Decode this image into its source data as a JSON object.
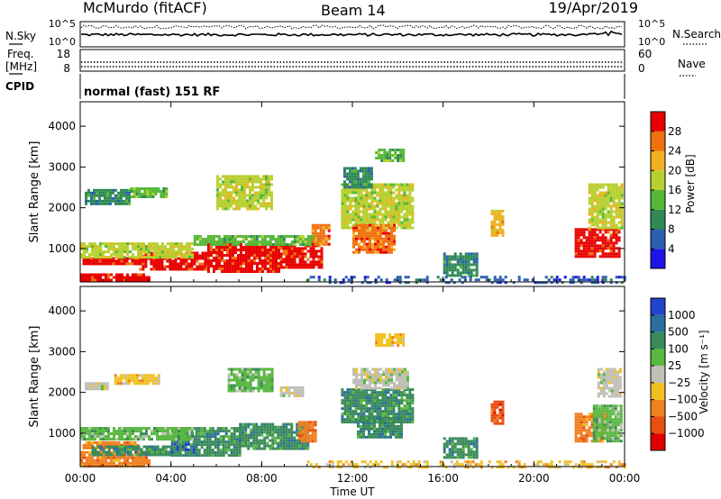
{
  "header": {
    "station": "McMurdo (fitACF)",
    "beam": "Beam 14",
    "date": "19/Apr/2019"
  },
  "noise_panel": {
    "left_label": "N.Sky",
    "right_label": "N.Search",
    "left_ticks": [
      "10^5",
      "10^0"
    ],
    "right_ticks": [
      "10^5",
      "10^0"
    ]
  },
  "freq_panel": {
    "left_label": "Freq.",
    "left_unit": "[MHz]",
    "left_ticks": [
      "18",
      "8"
    ],
    "right_label": "Nave",
    "right_ticks": [
      "60",
      "0"
    ]
  },
  "cpid_panel": {
    "label": "CPID",
    "text": "normal (fast) 151 RF"
  },
  "chart_data": [
    {
      "type": "heatmap",
      "quantity": "power",
      "ylabel": "Slant Range [km]",
      "ylim": [
        180,
        4600
      ],
      "yticks": [
        1000,
        2000,
        3000,
        4000
      ],
      "xlim": [
        0,
        24
      ],
      "xticks": [
        "00:00",
        "04:00",
        "08:00",
        "12:00",
        "16:00",
        "20:00",
        "00:00"
      ],
      "colorbar_label": "Power [dB]",
      "colorbar_ticks": [
        "4",
        "8",
        "12",
        "16",
        "20",
        "24",
        "28"
      ],
      "colorbar_colors": [
        "#1e14e6",
        "#2a5fb0",
        "#2f8a55",
        "#55b838",
        "#b8d030",
        "#f0b020",
        "#f07010",
        "#e80000"
      ],
      "regions": [
        {
          "t": [
            0.0,
            3.0
          ],
          "r": [
            200,
            390
          ],
          "level": 7
        },
        {
          "t": [
            0.1,
            2.6
          ],
          "r": [
            620,
            790
          ],
          "level": 7
        },
        {
          "t": [
            2.6,
            5.6
          ],
          "r": [
            500,
            920
          ],
          "level": 7
        },
        {
          "t": [
            5.6,
            8.8
          ],
          "r": [
            450,
            1130
          ],
          "level": 7
        },
        {
          "t": [
            8.8,
            10.6
          ],
          "r": [
            560,
            1100
          ],
          "level": 7
        },
        {
          "t": [
            0.0,
            5.0
          ],
          "r": [
            800,
            1150
          ],
          "level": 4
        },
        {
          "t": [
            5.0,
            10.6
          ],
          "r": [
            1120,
            1330
          ],
          "level": 3
        },
        {
          "t": [
            10.2,
            11.0
          ],
          "r": [
            1120,
            1600
          ],
          "level": 6
        },
        {
          "t": [
            0.2,
            2.2
          ],
          "r": [
            2120,
            2460
          ],
          "level": 2
        },
        {
          "t": [
            2.2,
            3.8
          ],
          "r": [
            2300,
            2500
          ],
          "level": 3
        },
        {
          "t": [
            6.0,
            8.5
          ],
          "r": [
            2000,
            2800
          ],
          "level": 4
        },
        {
          "t": [
            11.5,
            14.6
          ],
          "r": [
            1500,
            2600
          ],
          "level": 4
        },
        {
          "t": [
            12.0,
            13.8
          ],
          "r": [
            900,
            1600
          ],
          "level": 6
        },
        {
          "t": [
            11.6,
            12.8
          ],
          "r": [
            2500,
            3000
          ],
          "level": 2
        },
        {
          "t": [
            13.0,
            14.2
          ],
          "r": [
            3150,
            3450
          ],
          "level": 3
        },
        {
          "t": [
            18.1,
            18.6
          ],
          "r": [
            1350,
            1950
          ],
          "level": 5
        },
        {
          "t": [
            21.8,
            23.8
          ],
          "r": [
            800,
            1500
          ],
          "level": 7
        },
        {
          "t": [
            22.4,
            23.9
          ],
          "r": [
            1500,
            2600
          ],
          "level": 4
        },
        {
          "t": [
            16.0,
            17.5
          ],
          "r": [
            350,
            900
          ],
          "level": 2
        },
        {
          "t": [
            10.0,
            24.0
          ],
          "r": [
            190,
            330
          ],
          "level": 1
        }
      ]
    },
    {
      "type": "heatmap",
      "quantity": "velocity",
      "ylabel": "Slant Range [km]",
      "ylim": [
        180,
        4600
      ],
      "yticks": [
        1000,
        2000,
        3000,
        4000
      ],
      "xlabel": "Time UT",
      "xlim": [
        0,
        24
      ],
      "xticks": [
        "00:00",
        "04:00",
        "08:00",
        "12:00",
        "16:00",
        "20:00",
        "00:00"
      ],
      "colorbar_label": "Velocity [m s⁻¹]",
      "colorbar_ticks": [
        "1000",
        "500",
        "100",
        "25",
        "−25",
        "−100",
        "−500",
        "−1000"
      ],
      "colorbar_colors": [
        "#2244cc",
        "#2a6ea0",
        "#3a8a5a",
        "#58b840",
        "#c0c0b8",
        "#f0c020",
        "#f08020",
        "#e85010",
        "#e00000"
      ],
      "regions": [
        {
          "t": [
            0.0,
            3.0
          ],
          "r": [
            200,
            560
          ],
          "level": 6
        },
        {
          "t": [
            0.1,
            2.6
          ],
          "r": [
            620,
            800
          ],
          "level": 6
        },
        {
          "t": [
            0.5,
            4.0
          ],
          "r": [
            450,
            700
          ],
          "level": 2
        },
        {
          "t": [
            4.0,
            7.0
          ],
          "r": [
            450,
            1150
          ],
          "level": 2
        },
        {
          "t": [
            4.0,
            5.0
          ],
          "r": [
            520,
            760
          ],
          "level": 0
        },
        {
          "t": [
            7.0,
            10.0
          ],
          "r": [
            650,
            1250
          ],
          "level": 2
        },
        {
          "t": [
            9.6,
            10.4
          ],
          "r": [
            800,
            1300
          ],
          "level": 6
        },
        {
          "t": [
            0.0,
            5.0
          ],
          "r": [
            850,
            1150
          ],
          "level": 3
        },
        {
          "t": [
            0.2,
            1.2
          ],
          "r": [
            2100,
            2250
          ],
          "level": 4
        },
        {
          "t": [
            1.5,
            3.5
          ],
          "r": [
            2250,
            2450
          ],
          "level": 5
        },
        {
          "t": [
            6.5,
            8.5
          ],
          "r": [
            2050,
            2600
          ],
          "level": 3
        },
        {
          "t": [
            8.8,
            9.8
          ],
          "r": [
            1950,
            2150
          ],
          "level": 4
        },
        {
          "t": [
            11.5,
            14.6
          ],
          "r": [
            1300,
            2100
          ],
          "level": 2
        },
        {
          "t": [
            12.2,
            14.2
          ],
          "r": [
            900,
            1400
          ],
          "level": 2
        },
        {
          "t": [
            12.0,
            14.5
          ],
          "r": [
            2100,
            2600
          ],
          "level": 4
        },
        {
          "t": [
            13.0,
            14.2
          ],
          "r": [
            3150,
            3450
          ],
          "level": 5
        },
        {
          "t": [
            18.1,
            18.6
          ],
          "r": [
            1250,
            1800
          ],
          "level": 7
        },
        {
          "t": [
            21.8,
            23.2
          ],
          "r": [
            800,
            1500
          ],
          "level": 6
        },
        {
          "t": [
            22.6,
            23.9
          ],
          "r": [
            800,
            1700
          ],
          "level": 3
        },
        {
          "t": [
            22.8,
            23.8
          ],
          "r": [
            1900,
            2600
          ],
          "level": 4
        },
        {
          "t": [
            16.0,
            17.5
          ],
          "r": [
            400,
            900
          ],
          "level": 2
        },
        {
          "t": [
            10.0,
            24.0
          ],
          "r": [
            190,
            330
          ],
          "level": 5
        }
      ]
    }
  ]
}
